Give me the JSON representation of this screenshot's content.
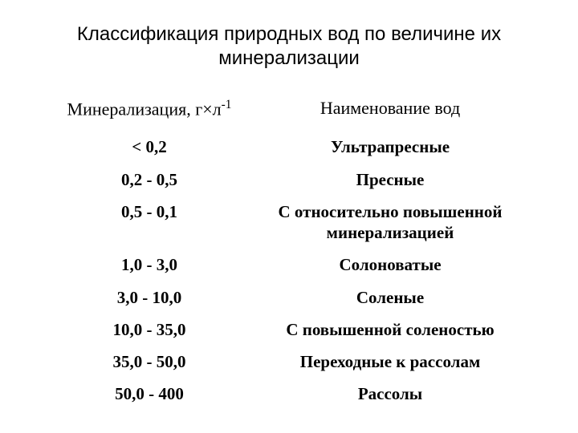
{
  "title": "Классификация природных вод по величине их минерализации",
  "table": {
    "columns": [
      "Минерализация, г×л",
      "Наименование вод"
    ],
    "header_superscript": "-1",
    "rows": [
      [
        "< 0,2",
        "Ультрапресные"
      ],
      [
        "0,2 - 0,5",
        "Пресные"
      ],
      [
        "0,5 - 0,1",
        "С относительно повышенной минерализацией"
      ],
      [
        "1,0 - 3,0",
        "Солоноватые"
      ],
      [
        "3,0 - 10,0",
        "Соленые"
      ],
      [
        "10,0 - 35,0",
        "С повышенной соленостью"
      ],
      [
        "35,0 - 50,0",
        "Переходные к рассолам"
      ],
      [
        "50,0 - 400",
        "Рассолы"
      ]
    ],
    "col_widths_pct": [
      42,
      58
    ],
    "header_fontsize_pt": 17,
    "cell_fontsize_pt": 16,
    "title_fontsize_pt": 18,
    "background_color": "#ffffff",
    "text_color": "#000000"
  }
}
